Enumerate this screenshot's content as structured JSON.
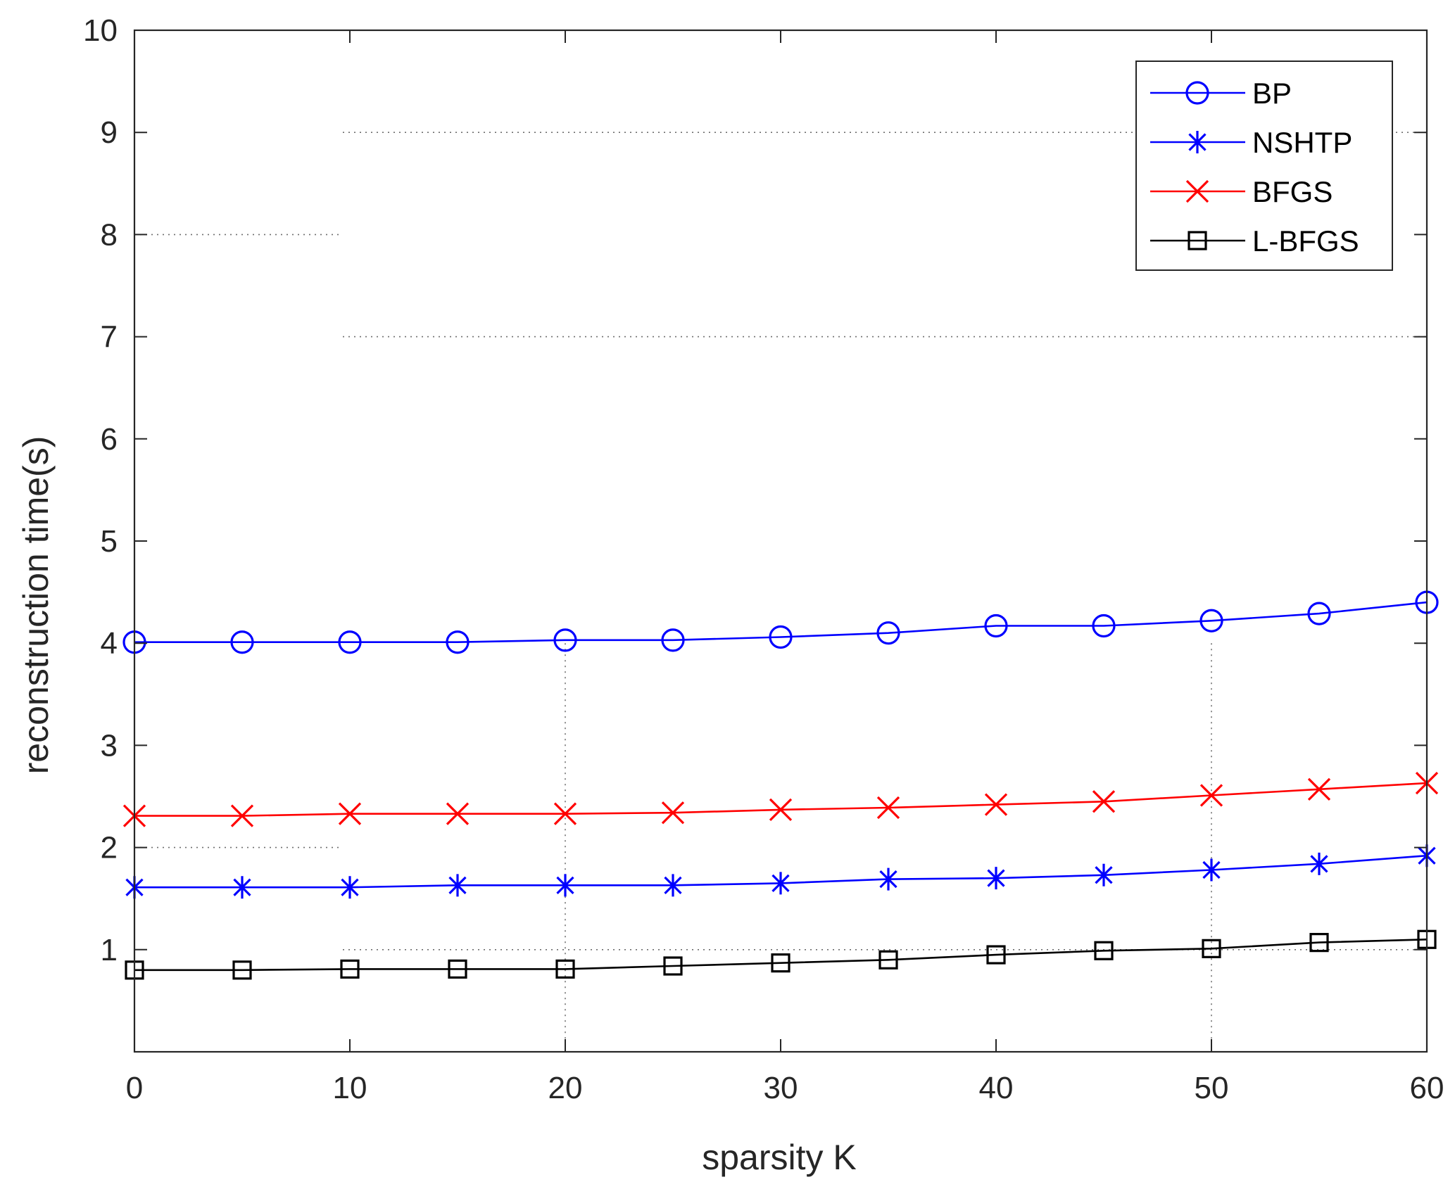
{
  "chart_data": {
    "type": "line",
    "title": "",
    "xlabel": "sparsity K",
    "ylabel": "reconstruction time(s)",
    "xlim": [
      0,
      60
    ],
    "ylim": [
      0,
      10
    ],
    "xticks": [
      0,
      10,
      20,
      30,
      40,
      50,
      60
    ],
    "yticks": [
      1,
      2,
      3,
      4,
      5,
      6,
      7,
      8,
      9,
      10
    ],
    "grid": "partial dotted",
    "legend_position": "top-right",
    "x": [
      0,
      5,
      10,
      15,
      20,
      25,
      30,
      35,
      40,
      45,
      50,
      55,
      60
    ],
    "series": [
      {
        "name": "BP",
        "color": "#0000ff",
        "marker": "circle",
        "values": [
          4.01,
          4.01,
          4.01,
          4.01,
          4.03,
          4.03,
          4.06,
          4.1,
          4.17,
          4.17,
          4.22,
          4.29,
          4.4
        ]
      },
      {
        "name": "NSHTP",
        "color": "#0000ff",
        "marker": "asterisk",
        "values": [
          1.61,
          1.61,
          1.61,
          1.63,
          1.63,
          1.63,
          1.65,
          1.69,
          1.7,
          1.73,
          1.78,
          1.84,
          1.92
        ]
      },
      {
        "name": "BFGS",
        "color": "#ff0000",
        "marker": "x",
        "values": [
          2.31,
          2.31,
          2.33,
          2.33,
          2.33,
          2.34,
          2.37,
          2.39,
          2.42,
          2.45,
          2.51,
          2.57,
          2.63
        ]
      },
      {
        "name": "L-BFGS",
        "color": "#000000",
        "marker": "square",
        "values": [
          0.8,
          0.8,
          0.81,
          0.81,
          0.81,
          0.84,
          0.87,
          0.9,
          0.95,
          0.99,
          1.01,
          1.07,
          1.1
        ]
      }
    ]
  }
}
